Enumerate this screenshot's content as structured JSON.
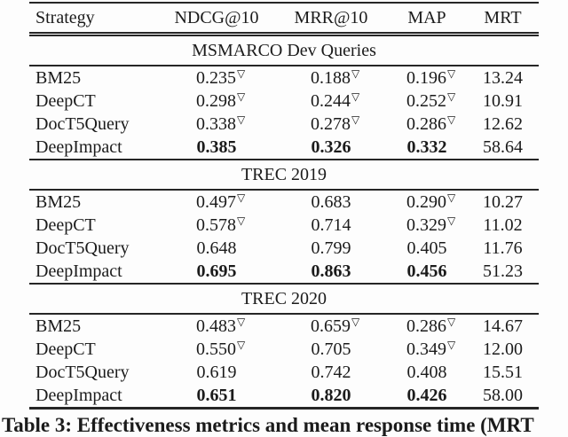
{
  "page": {
    "background_color": "#fdfdfd",
    "text_color": "#1b1b1b",
    "rule_color": "#262626"
  },
  "marker": {
    "glyph": "▽",
    "meaning": "statistical-significance-marker"
  },
  "caption": "Table 3: Effectiveness metrics and mean response time (MRT",
  "table": {
    "columns": [
      "Strategy",
      "NDCG@10",
      "MRR@10",
      "MAP",
      "MRT"
    ],
    "sections": [
      {
        "title": "MSMARCO Dev Queries",
        "rows": [
          {
            "strategy": "BM25",
            "metrics": [
              {
                "v": "0.235",
                "sig": true,
                "bold": false
              },
              {
                "v": "0.188",
                "sig": true,
                "bold": false
              },
              {
                "v": "0.196",
                "sig": true,
                "bold": false
              }
            ],
            "mrt": "13.24"
          },
          {
            "strategy": "DeepCT",
            "metrics": [
              {
                "v": "0.298",
                "sig": true,
                "bold": false
              },
              {
                "v": "0.244",
                "sig": true,
                "bold": false
              },
              {
                "v": "0.252",
                "sig": true,
                "bold": false
              }
            ],
            "mrt": "10.91"
          },
          {
            "strategy": "DocT5Query",
            "metrics": [
              {
                "v": "0.338",
                "sig": true,
                "bold": false
              },
              {
                "v": "0.278",
                "sig": true,
                "bold": false
              },
              {
                "v": "0.286",
                "sig": true,
                "bold": false
              }
            ],
            "mrt": "12.62"
          },
          {
            "strategy": "DeepImpact",
            "metrics": [
              {
                "v": "0.385",
                "sig": false,
                "bold": true
              },
              {
                "v": "0.326",
                "sig": false,
                "bold": true
              },
              {
                "v": "0.332",
                "sig": false,
                "bold": true
              }
            ],
            "mrt": "58.64"
          }
        ]
      },
      {
        "title": "TREC 2019",
        "rows": [
          {
            "strategy": "BM25",
            "metrics": [
              {
                "v": "0.497",
                "sig": true,
                "bold": false
              },
              {
                "v": "0.683",
                "sig": false,
                "bold": false
              },
              {
                "v": "0.290",
                "sig": true,
                "bold": false
              }
            ],
            "mrt": "10.27"
          },
          {
            "strategy": "DeepCT",
            "metrics": [
              {
                "v": "0.578",
                "sig": true,
                "bold": false
              },
              {
                "v": "0.714",
                "sig": false,
                "bold": false
              },
              {
                "v": "0.329",
                "sig": true,
                "bold": false
              }
            ],
            "mrt": "11.02"
          },
          {
            "strategy": "DocT5Query",
            "metrics": [
              {
                "v": "0.648",
                "sig": false,
                "bold": false
              },
              {
                "v": "0.799",
                "sig": false,
                "bold": false
              },
              {
                "v": "0.405",
                "sig": false,
                "bold": false
              }
            ],
            "mrt": "11.76"
          },
          {
            "strategy": "DeepImpact",
            "metrics": [
              {
                "v": "0.695",
                "sig": false,
                "bold": true
              },
              {
                "v": "0.863",
                "sig": false,
                "bold": true
              },
              {
                "v": "0.456",
                "sig": false,
                "bold": true
              }
            ],
            "mrt": "51.23"
          }
        ]
      },
      {
        "title": "TREC 2020",
        "rows": [
          {
            "strategy": "BM25",
            "metrics": [
              {
                "v": "0.483",
                "sig": true,
                "bold": false
              },
              {
                "v": "0.659",
                "sig": true,
                "bold": false
              },
              {
                "v": "0.286",
                "sig": true,
                "bold": false
              }
            ],
            "mrt": "14.67"
          },
          {
            "strategy": "DeepCT",
            "metrics": [
              {
                "v": "0.550",
                "sig": true,
                "bold": false
              },
              {
                "v": "0.705",
                "sig": false,
                "bold": false
              },
              {
                "v": "0.349",
                "sig": true,
                "bold": false
              }
            ],
            "mrt": "12.00"
          },
          {
            "strategy": "DocT5Query",
            "metrics": [
              {
                "v": "0.619",
                "sig": false,
                "bold": false
              },
              {
                "v": "0.742",
                "sig": false,
                "bold": false
              },
              {
                "v": "0.408",
                "sig": false,
                "bold": false
              }
            ],
            "mrt": "15.51"
          },
          {
            "strategy": "DeepImpact",
            "metrics": [
              {
                "v": "0.651",
                "sig": false,
                "bold": true
              },
              {
                "v": "0.820",
                "sig": false,
                "bold": true
              },
              {
                "v": "0.426",
                "sig": false,
                "bold": true
              }
            ],
            "mrt": "58.00"
          }
        ]
      }
    ]
  }
}
